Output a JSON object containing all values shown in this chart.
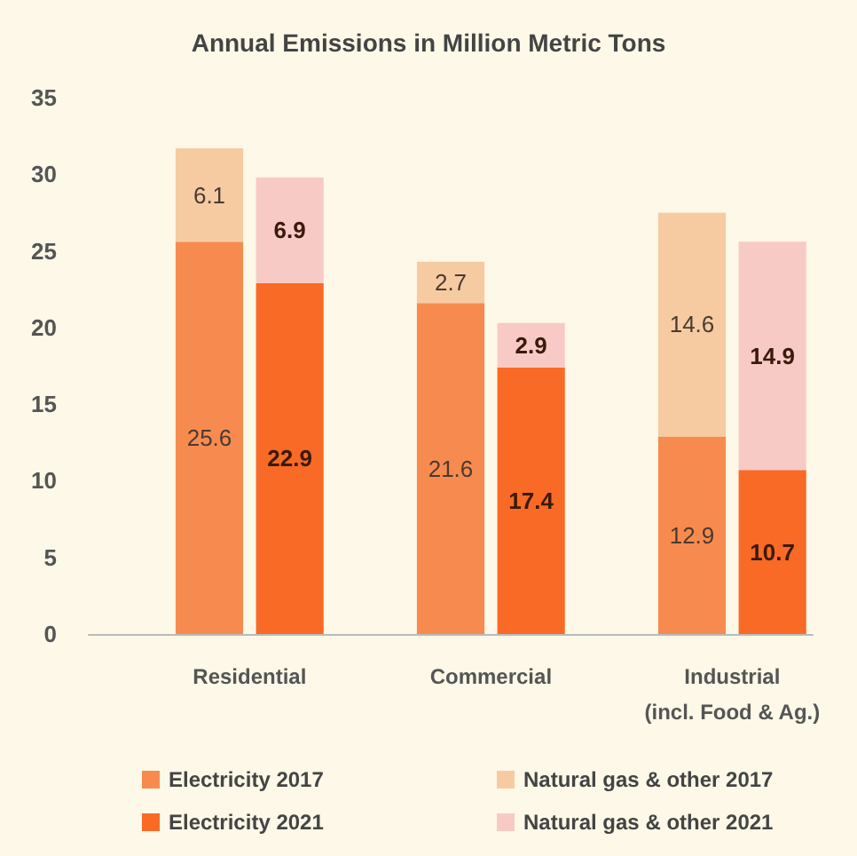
{
  "chart_data": {
    "type": "bar",
    "title": "Annual Emissions in Million Metric Tons",
    "categories": [
      null,
      "Residential",
      null,
      null,
      "Commercial",
      null,
      null,
      "Industrial\n(incl. Food & Ag.)",
      null
    ],
    "stacked": true,
    "series": [
      {
        "name": "Electricity 2017",
        "color": "#f78b4f",
        "values": [
          null,
          25.6,
          null,
          null,
          21.6,
          null,
          null,
          12.9,
          null
        ]
      },
      {
        "name": "Natural gas & other 2017",
        "color": "#f6cba2",
        "values": [
          null,
          6.1,
          null,
          null,
          2.7,
          null,
          null,
          14.6,
          null
        ]
      },
      {
        "name": "Electricity 2021",
        "color": "#f86a26",
        "values": [
          null,
          null,
          22.9,
          null,
          null,
          17.4,
          null,
          null,
          10.7
        ]
      },
      {
        "name": "Natural gas & other 2021",
        "color": "#f8cac5",
        "values": [
          null,
          null,
          6.9,
          null,
          null,
          2.9,
          null,
          null,
          14.9
        ]
      }
    ],
    "ylim": [
      0,
      35
    ],
    "yticks": [
      0,
      5,
      10,
      15,
      20,
      25,
      30,
      35
    ],
    "grid": false,
    "data_labels": true,
    "legend": "bottom"
  }
}
